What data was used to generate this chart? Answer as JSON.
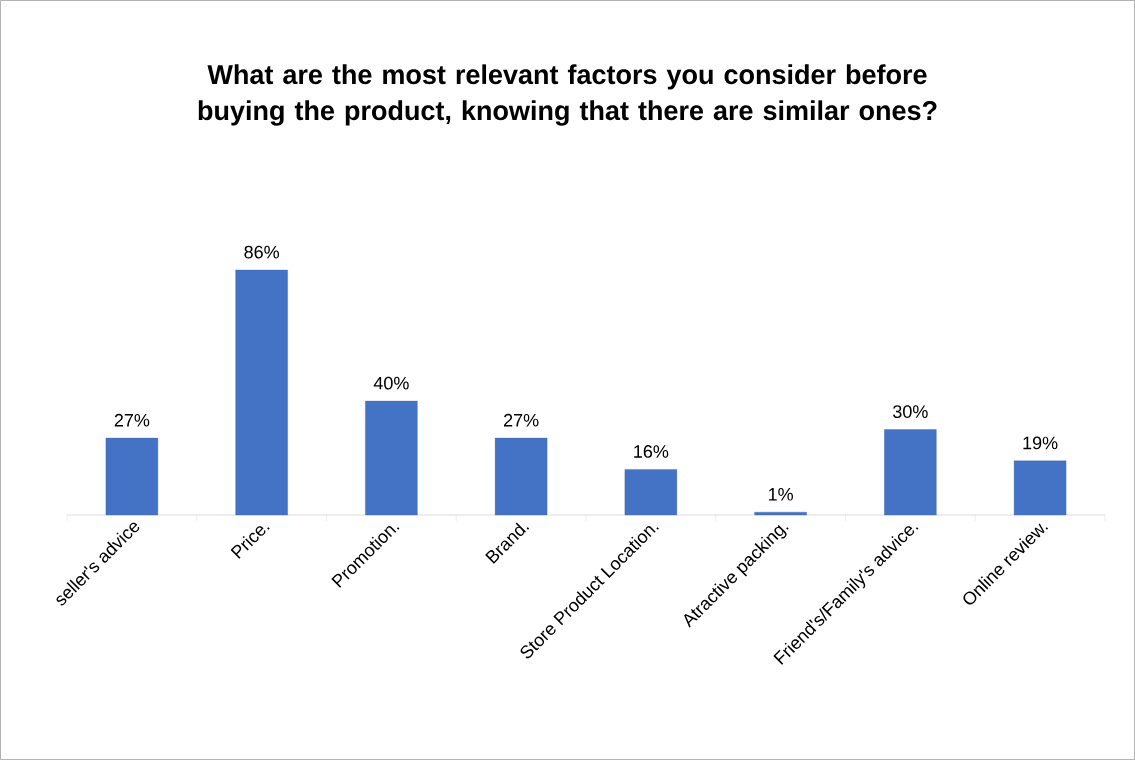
{
  "chart_data": {
    "type": "bar",
    "title": "What are the most relevant factors you consider before buying the product, knowing that there are similar ones?",
    "categories": [
      "seller's advice",
      "Price.",
      "Promotion.",
      "Brand.",
      "Store Product Location.",
      "Atractive packing.",
      "Friend's/Family's advice.",
      "Online review."
    ],
    "values": [
      27,
      86,
      40,
      27,
      16,
      1,
      30,
      19
    ],
    "value_labels": [
      "27%",
      "86%",
      "40%",
      "27%",
      "16%",
      "1%",
      "30%",
      "19%"
    ],
    "color": "#4472c4"
  }
}
